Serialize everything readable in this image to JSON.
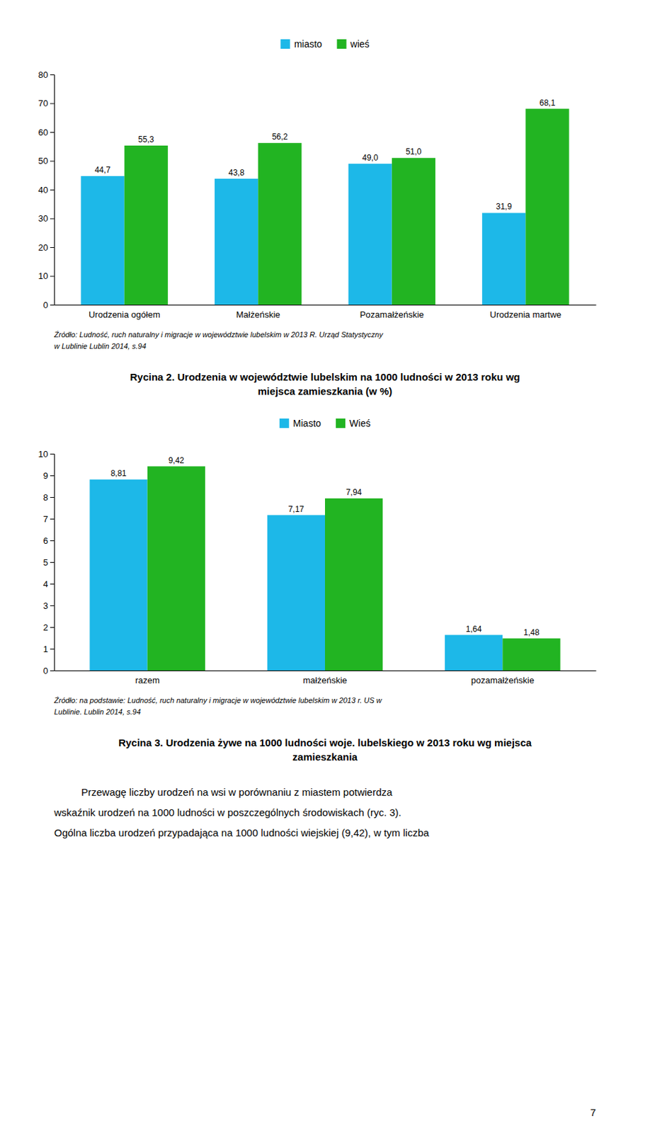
{
  "chart_data": [
    {
      "type": "bar",
      "title": [
        "Rycina 2. Urodzenia w województwie lubelskim na 1000 ludności w 2013 roku wg",
        "miejsca zamieszkania (w %)"
      ],
      "categories": [
        "Urodzenia ogółem",
        "Małżeńskie",
        "Pozamałżeńskie",
        "Urodzenia martwe"
      ],
      "series": [
        {
          "name": "miasto",
          "color": "#1DB8E8",
          "values": [
            44.7,
            43.8,
            49.0,
            31.9
          ],
          "value_labels": [
            "44,7",
            "43,8",
            "49,0",
            "31,9"
          ]
        },
        {
          "name": "wieś",
          "color": "#22B422",
          "values": [
            55.3,
            56.2,
            51.0,
            68.1
          ],
          "value_labels": [
            "55,3",
            "56,2",
            "51,0",
            "68,1"
          ]
        }
      ],
      "ylim": [
        0,
        80
      ],
      "yticks": [
        0,
        10,
        20,
        30,
        40,
        50,
        60,
        70,
        80
      ],
      "grid": false,
      "legend": "top",
      "data_labels": true,
      "annotations": [
        "Źródło: Ludność, ruch naturalny i migracje w województwie lubelskim w 2013 R. Urząd Statystyczny",
        "w Lublinie Lublin 2014, s.94"
      ]
    },
    {
      "type": "bar",
      "title": [
        "Rycina 3. Urodzenia żywe na 1000 ludności woje. lubelskiego w 2013 roku wg miejsca",
        "zamieszkania"
      ],
      "categories": [
        "razem",
        "małżeńskie",
        "pozamałżeńskie"
      ],
      "series": [
        {
          "name": "Miasto",
          "color": "#1DB8E8",
          "values": [
            8.81,
            7.17,
            1.64
          ],
          "value_labels": [
            "8,81",
            "7,17",
            "1,64"
          ]
        },
        {
          "name": "Wieś",
          "color": "#22B422",
          "values": [
            9.42,
            7.94,
            1.48
          ],
          "value_labels": [
            "9,42",
            "7,94",
            "1,48"
          ]
        }
      ],
      "ylim": [
        0,
        10
      ],
      "yticks": [
        0,
        1,
        2,
        3,
        4,
        5,
        6,
        7,
        8,
        9,
        10
      ],
      "grid": false,
      "legend": "top",
      "data_labels": true,
      "annotations": [
        "Źródło: na podstawie: Ludność, ruch naturalny i migracje w województwie lubelskim w 2013 r. US w",
        "Lublinie. Lublin 2014, s.94"
      ]
    }
  ],
  "body_text": [
    "Przewagę liczby urodzeń na wsi w porównaniu z miastem potwierdza",
    "wskaźnik urodzeń na 1000 ludności w poszczególnych środowiskach (ryc. 3).",
    "Ogólna liczba urodzeń przypadająca na 1000 ludności wiejskiej (9,42), w tym liczba"
  ],
  "page_number": "7"
}
